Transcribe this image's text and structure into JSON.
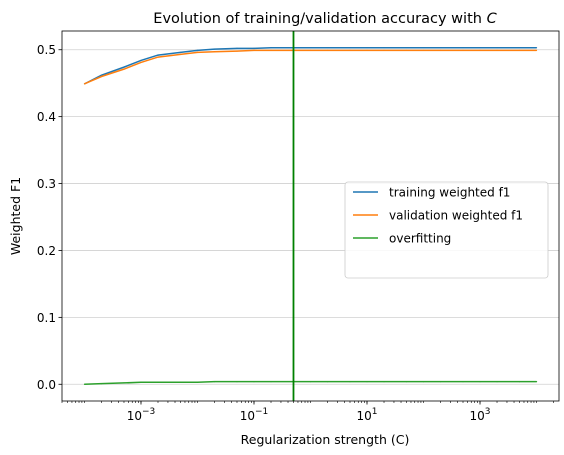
{
  "chart_data": {
    "type": "line",
    "title_main": "Evolution of training/validation accuracy with ",
    "title_var": "C",
    "xlabel": "Regularization strength (C)",
    "ylabel": "Weighted F1",
    "x_scale": "log",
    "xlim": [
      4e-05,
      25000
    ],
    "ylim": [
      -0.025,
      0.528
    ],
    "grid": "horizontal",
    "legend_position": "center-right",
    "x_ticks": [
      {
        "value": 0.001,
        "base": "10",
        "exp": "−3"
      },
      {
        "value": 0.1,
        "base": "10",
        "exp": "−1"
      },
      {
        "value": 10,
        "base": "10",
        "exp": "1"
      },
      {
        "value": 1000,
        "base": "10",
        "exp": "3"
      }
    ],
    "y_ticks": [
      {
        "value": 0.0,
        "label": "0.0"
      },
      {
        "value": 0.1,
        "label": "0.1"
      },
      {
        "value": 0.2,
        "label": "0.2"
      },
      {
        "value": 0.3,
        "label": "0.3"
      },
      {
        "value": 0.4,
        "label": "0.4"
      },
      {
        "value": 0.5,
        "label": "0.5"
      }
    ],
    "x": [
      0.0001,
      0.0002,
      0.0005,
      0.001,
      0.002,
      0.005,
      0.01,
      0.02,
      0.05,
      0.1,
      0.2,
      0.5,
      1,
      2,
      5,
      10,
      20,
      50,
      100,
      200,
      500,
      1000,
      2000,
      5000,
      10000
    ],
    "series": [
      {
        "name": "training weighted f1",
        "color": "#1f77b4",
        "values": [
          0.449,
          0.462,
          0.474,
          0.484,
          0.492,
          0.496,
          0.499,
          0.501,
          0.502,
          0.502,
          0.503,
          0.503,
          0.503,
          0.503,
          0.503,
          0.503,
          0.503,
          0.503,
          0.503,
          0.503,
          0.503,
          0.503,
          0.503,
          0.503,
          0.503
        ]
      },
      {
        "name": "validation weighted f1",
        "color": "#ff7f0e",
        "values": [
          0.449,
          0.46,
          0.471,
          0.481,
          0.489,
          0.493,
          0.496,
          0.497,
          0.498,
          0.499,
          0.499,
          0.499,
          0.499,
          0.499,
          0.499,
          0.499,
          0.499,
          0.499,
          0.499,
          0.499,
          0.499,
          0.499,
          0.499,
          0.499,
          0.499
        ]
      },
      {
        "name": "overfitting",
        "color": "#2ca02c",
        "values": [
          0.0,
          0.001,
          0.002,
          0.003,
          0.003,
          0.003,
          0.003,
          0.004,
          0.004,
          0.004,
          0.004,
          0.004,
          0.004,
          0.004,
          0.004,
          0.004,
          0.004,
          0.004,
          0.004,
          0.004,
          0.004,
          0.004,
          0.004,
          0.004,
          0.004
        ]
      }
    ],
    "vline": {
      "x": 0.5,
      "color": "#008000"
    }
  }
}
